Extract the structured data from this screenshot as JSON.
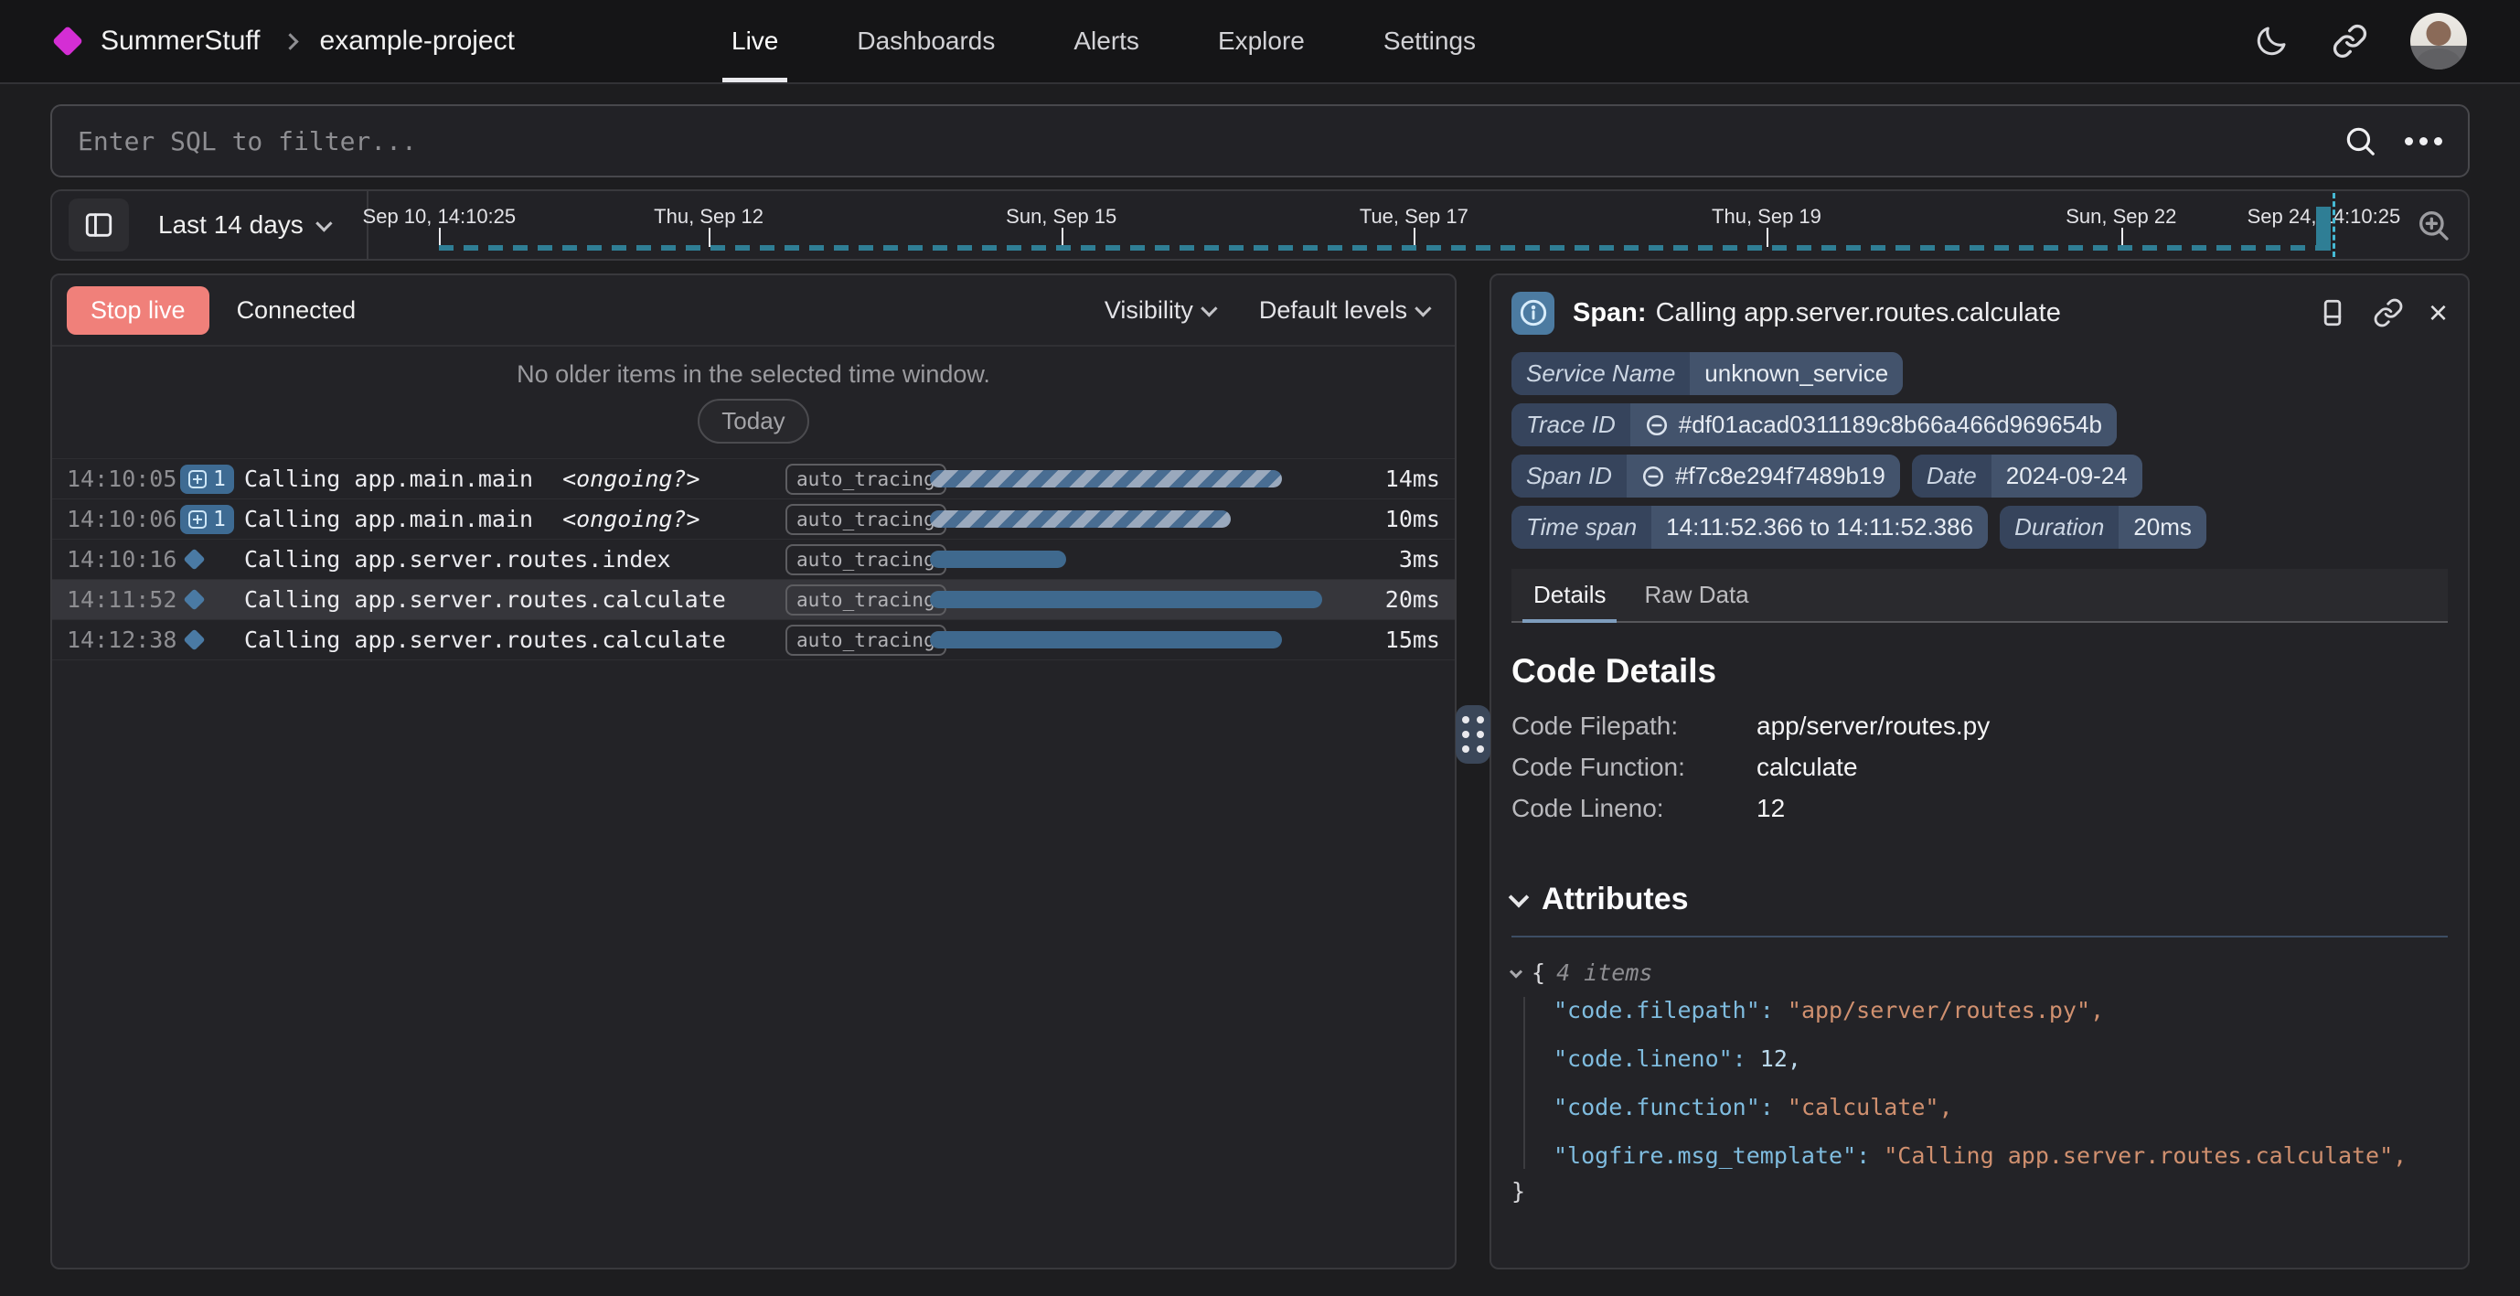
{
  "header": {
    "brand": "SummerStuff",
    "project": "example-project",
    "tabs": [
      {
        "label": "Live",
        "active": true
      },
      {
        "label": "Dashboards"
      },
      {
        "label": "Alerts"
      },
      {
        "label": "Explore"
      },
      {
        "label": "Settings"
      }
    ]
  },
  "filter": {
    "placeholder": "Enter SQL to filter..."
  },
  "timeline": {
    "range_label": "Last 14 days",
    "ticks": [
      "Sep 10, 14:10:25",
      "Thu, Sep 12",
      "Sun, Sep 15",
      "Tue, Sep 17",
      "Thu, Sep 19",
      "Sun, Sep 22",
      "Sep 24, 14:10:25"
    ]
  },
  "live_panel": {
    "stop_button": "Stop live",
    "status": "Connected",
    "visibility_menu": "Visibility",
    "levels_menu": "Default levels",
    "empty_message": "No older items in the selected time window.",
    "today_button": "Today",
    "rows": [
      {
        "time": "14:10:05",
        "expand_count": "1",
        "message": "Calling app.main.main",
        "suffix": "<ongoing?>",
        "tag": "auto_tracing",
        "duration": "14ms",
        "bar_pct": 88,
        "bar_style": "striped"
      },
      {
        "time": "14:10:06",
        "expand_count": "1",
        "message": "Calling app.main.main",
        "suffix": "<ongoing?>",
        "tag": "auto_tracing",
        "duration": "10ms",
        "bar_pct": 75,
        "bar_style": "striped"
      },
      {
        "time": "14:10:16",
        "message": "Calling app.server.routes.index",
        "tag": "auto_tracing",
        "duration": "3ms",
        "bar_pct": 34,
        "bar_style": "solid"
      },
      {
        "time": "14:11:52",
        "message": "Calling app.server.routes.calculate",
        "tag": "auto_tracing",
        "duration": "20ms",
        "bar_pct": 98,
        "bar_style": "solid",
        "selected": true
      },
      {
        "time": "14:12:38",
        "message": "Calling app.server.routes.calculate",
        "tag": "auto_tracing",
        "duration": "15ms",
        "bar_pct": 88,
        "bar_style": "solid"
      }
    ]
  },
  "detail_panel": {
    "title_label": "Span:",
    "title": "Calling app.server.routes.calculate",
    "badges": {
      "service_name": {
        "label": "Service Name",
        "value": "unknown_service"
      },
      "trace_id": {
        "label": "Trace ID",
        "value": "#df01acad0311189c8b66a466d969654b"
      },
      "span_id": {
        "label": "Span ID",
        "value": "#f7c8e294f7489b19"
      },
      "date": {
        "label": "Date",
        "value": "2024-09-24"
      },
      "time_span": {
        "label": "Time span",
        "value": "14:11:52.366 to 14:11:52.386"
      },
      "duration": {
        "label": "Duration",
        "value": "20ms"
      }
    },
    "tabs": [
      {
        "label": "Details",
        "active": true
      },
      {
        "label": "Raw Data"
      }
    ],
    "code_details": {
      "heading": "Code Details",
      "rows": [
        {
          "label": "Code Filepath:",
          "value": "app/server/routes.py"
        },
        {
          "label": "Code Function:",
          "value": "calculate"
        },
        {
          "label": "Code Lineno:",
          "value": "12"
        }
      ]
    },
    "attributes": {
      "heading": "Attributes",
      "items_note": "4 items",
      "open_brace": "{",
      "close_brace": "}",
      "entries": [
        {
          "key": "\"code.filepath\":",
          "value": "\"app/server/routes.py\",",
          "kind": "string"
        },
        {
          "key": "\"code.lineno\":",
          "value": "12,",
          "kind": "number"
        },
        {
          "key": "\"code.function\":",
          "value": "\"calculate\",",
          "kind": "string"
        },
        {
          "key": "\"logfire.msg_template\":",
          "value": "\"Calling app.server.routes.calculate\",",
          "kind": "string"
        }
      ]
    }
  }
}
